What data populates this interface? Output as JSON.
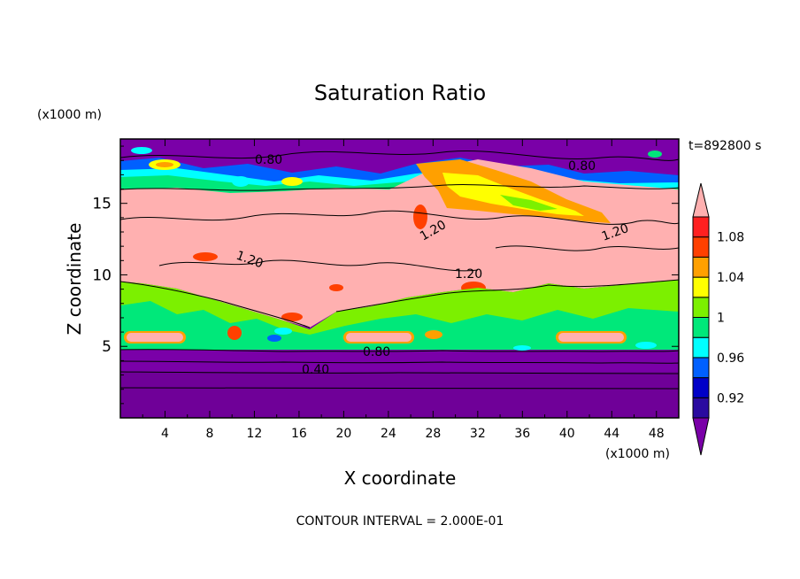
{
  "chart_data": {
    "type": "heatmap",
    "title": "Saturation Ratio",
    "xlabel": "X coordinate",
    "ylabel": "Z coordinate",
    "x_unit": "(x1000 m)",
    "y_unit": "(x1000 m)",
    "time_label": "t=892800 s",
    "footer": "CONTOUR INTERVAL = 2.000E-01",
    "xlim": [
      0,
      50
    ],
    "ylim": [
      0,
      19.5
    ],
    "x_ticks": [
      "4",
      "8",
      "12",
      "16",
      "20",
      "24",
      "28",
      "32",
      "36",
      "40",
      "44",
      "48"
    ],
    "y_ticks": [
      "5",
      "10",
      "15"
    ],
    "colorbar_labels": [
      "0.92",
      "0.96",
      "1",
      "1.04",
      "1.08"
    ],
    "contour_labels": [
      "0.80",
      "0.80",
      "1.20",
      "1.20",
      "1.20",
      "1.20",
      "0.80",
      "0.40"
    ],
    "colors": {
      "lt092": "#7a00a8",
      "b092_094": "#2a0aa0",
      "b094_096": "#0000c8",
      "b096_098": "#0060ff",
      "b098_100": "#00ffff",
      "b100_102": "#00e87a",
      "b102_104": "#7cf000",
      "b104_106": "#ffff00",
      "b106_108": "#ffa000",
      "b108_110": "#ff4000",
      "b110_112": "#ff2020",
      "gt112": "#ffb0b0"
    }
  }
}
